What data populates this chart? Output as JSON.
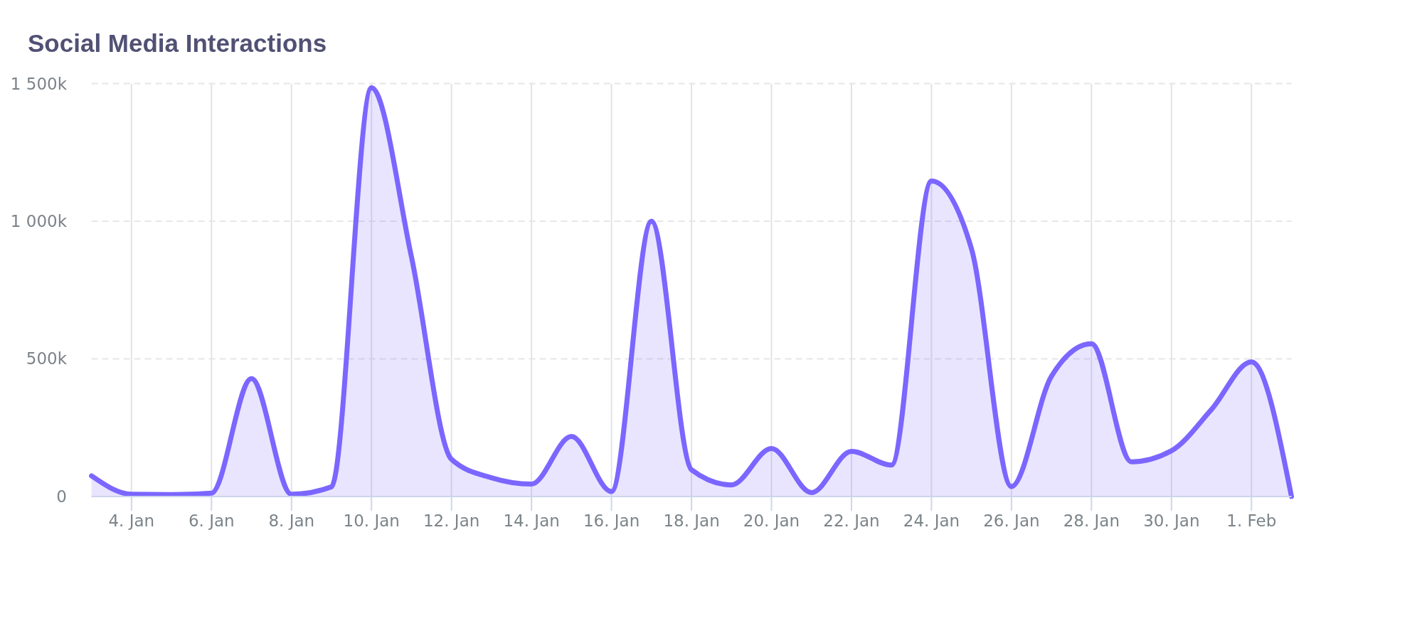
{
  "chart_data": {
    "type": "area",
    "title": "Social Media Interactions",
    "x": [
      "--01-03",
      "--01-04",
      "--01-05",
      "--01-06",
      "--01-07",
      "--01-08",
      "--01-09",
      "--01-10",
      "--01-11",
      "--01-12",
      "--01-13",
      "--01-14",
      "--01-15",
      "--01-16",
      "--01-17",
      "--01-18",
      "--01-19",
      "--01-20",
      "--01-21",
      "--01-22",
      "--01-23",
      "--01-24",
      "--01-25",
      "--01-26",
      "--01-27",
      "--01-28",
      "--01-29",
      "--01-30",
      "--01-31",
      "--02-01",
      "--02-02"
    ],
    "series": [
      {
        "color": "#7b66ff",
        "values": [
          75000,
          8000,
          7000,
          12000,
          428000,
          8000,
          35000,
          1485000,
          870000,
          135000,
          68000,
          45000,
          218000,
          18000,
          1000000,
          97000,
          42000,
          174000,
          14000,
          164000,
          114000,
          1146000,
          900000,
          36000,
          437000,
          555000,
          126000,
          166000,
          316000,
          489000,
          0
        ]
      }
    ],
    "xlim": [
      "--01-03",
      "--02-02"
    ],
    "xticks": [
      {
        "value": "--01-04",
        "label": "4. Jan"
      },
      {
        "value": "--01-06",
        "label": "6. Jan"
      },
      {
        "value": "--01-08",
        "label": "8. Jan"
      },
      {
        "value": "--01-10",
        "label": "10. Jan"
      },
      {
        "value": "--01-12",
        "label": "12. Jan"
      },
      {
        "value": "--01-14",
        "label": "14. Jan"
      },
      {
        "value": "--01-16",
        "label": "16. Jan"
      },
      {
        "value": "--01-18",
        "label": "18. Jan"
      },
      {
        "value": "--01-20",
        "label": "20. Jan"
      },
      {
        "value": "--01-22",
        "label": "22. Jan"
      },
      {
        "value": "--01-24",
        "label": "24. Jan"
      },
      {
        "value": "--01-26",
        "label": "26. Jan"
      },
      {
        "value": "--01-28",
        "label": "28. Jan"
      },
      {
        "value": "--01-30",
        "label": "30. Jan"
      },
      {
        "value": "--02-01",
        "label": "1. Feb"
      }
    ],
    "ylim": [
      0,
      1500000
    ],
    "yticks": [
      0,
      {
        "value": 500000,
        "label": "500k"
      },
      {
        "value": 1000000,
        "label": "1 000k"
      },
      {
        "value": 1500000,
        "label": "1 500k"
      }
    ],
    "grid": true,
    "marker": "none"
  }
}
